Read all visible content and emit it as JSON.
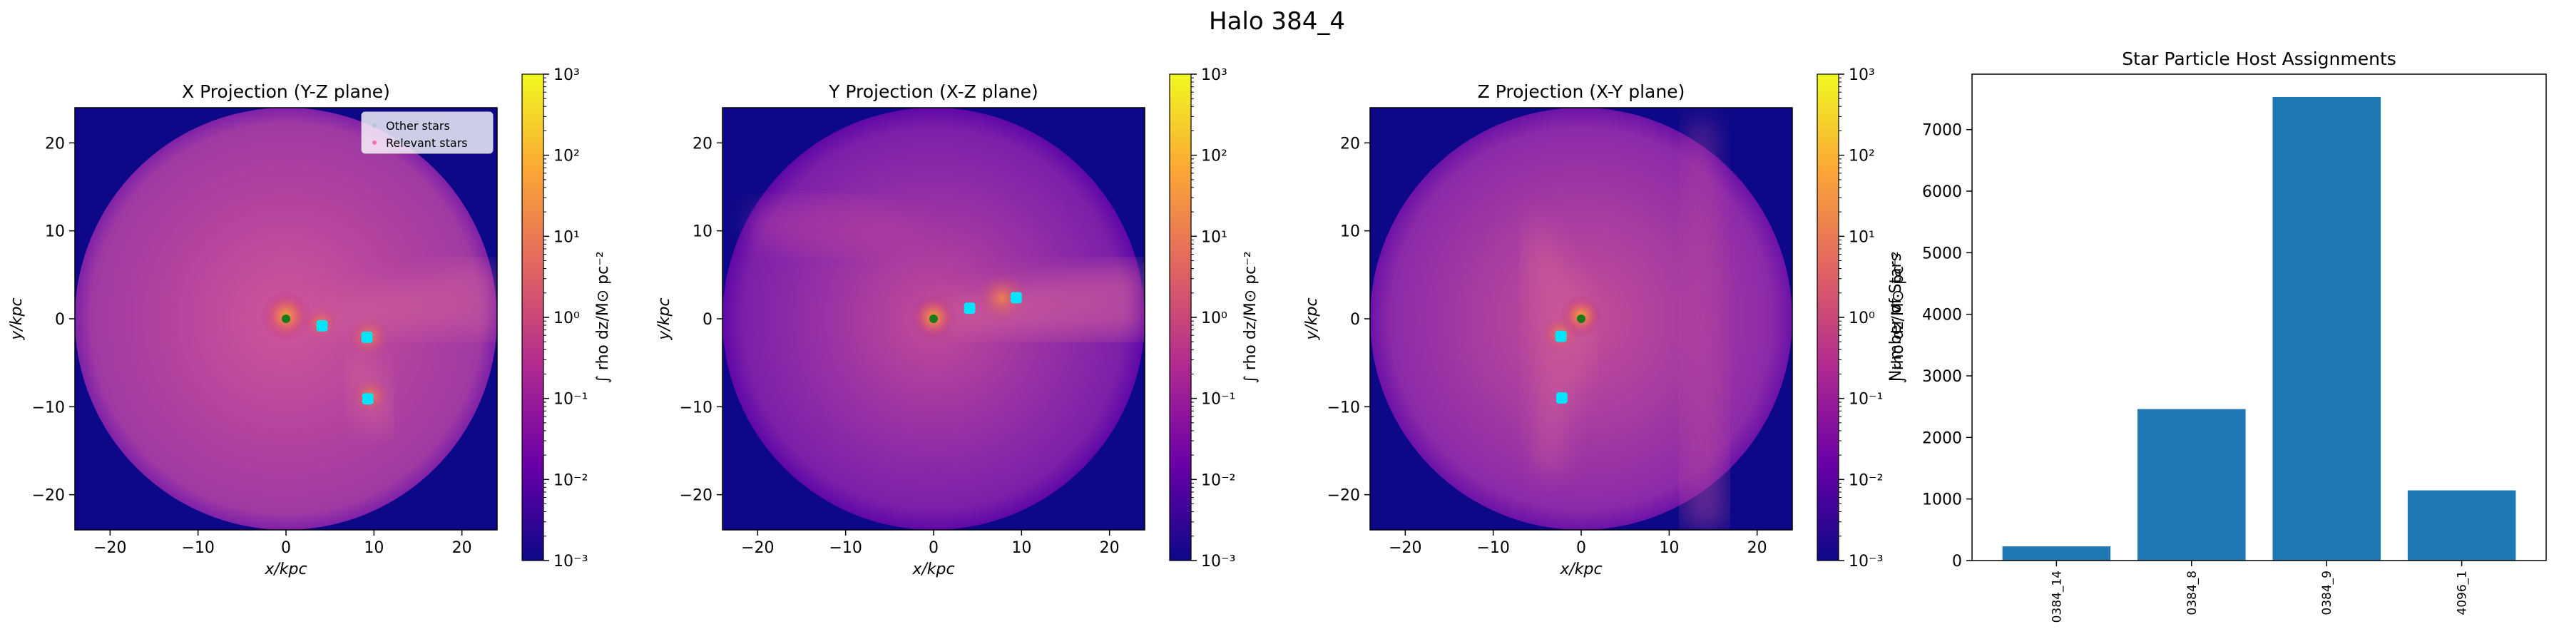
{
  "figure": {
    "suptitle": "Halo 384_4"
  },
  "colors": {
    "cmap": [
      "#0d0887",
      "#6a00a8",
      "#b12a90",
      "#e16462",
      "#fca636",
      "#f0f921"
    ],
    "other_stars": "#b0c4de",
    "relevant_stars": "#ff69b4",
    "star_clump": "#00e5ff",
    "center_marker": "#1a7a1a",
    "bar": "#1f77b4"
  },
  "chart_data": [
    {
      "type": "heatmap",
      "title": "X Projection (Y-Z plane)",
      "xlabel": "x/kpc",
      "ylabel": "y/kpc",
      "xlim": [
        -24,
        24
      ],
      "ylim": [
        -24,
        24
      ],
      "xticks": [
        -20,
        -10,
        0,
        10,
        20
      ],
      "yticks": [
        -20,
        -10,
        0,
        10,
        20
      ],
      "colorbar": {
        "label": "∫ rho dz/M⊙ pc⁻²",
        "scale": "log",
        "range": [
          0.001,
          1000
        ],
        "ticks": [
          "10³",
          "10²",
          "10¹",
          "10⁰",
          "10⁻¹",
          "10⁻²",
          "10⁻³"
        ]
      },
      "legend": {
        "position": "upper right",
        "entries": [
          "Other stars",
          "Relevant stars"
        ]
      },
      "center": [
        0,
        0
      ],
      "star_clumps": [
        [
          9.2,
          -2.1
        ],
        [
          9.3,
          -9.1
        ],
        [
          4.1,
          -0.8
        ]
      ]
    },
    {
      "type": "heatmap",
      "title": "Y Projection (X-Z plane)",
      "xlabel": "x/kpc",
      "ylabel": "y/kpc",
      "xlim": [
        -24,
        24
      ],
      "ylim": [
        -24,
        24
      ],
      "xticks": [
        -20,
        -10,
        0,
        10,
        20
      ],
      "yticks": [
        -20,
        -10,
        0,
        10,
        20
      ],
      "colorbar": {
        "label": "∫ rho dz/M⊙ pc⁻²",
        "scale": "log",
        "range": [
          0.001,
          1000
        ],
        "ticks": [
          "10³",
          "10²",
          "10¹",
          "10⁰",
          "10⁻¹",
          "10⁻²",
          "10⁻³"
        ]
      },
      "center": [
        0,
        0
      ],
      "star_clumps": [
        [
          9.4,
          2.4
        ],
        [
          4.1,
          1.2
        ]
      ]
    },
    {
      "type": "heatmap",
      "title": "Z Projection (X-Y plane)",
      "xlabel": "x/kpc",
      "ylabel": "y/kpc",
      "xlim": [
        -24,
        24
      ],
      "ylim": [
        -24,
        24
      ],
      "xticks": [
        -20,
        -10,
        0,
        10,
        20
      ],
      "yticks": [
        -20,
        -10,
        0,
        10,
        20
      ],
      "colorbar": {
        "label": "∫ rho dz/M⊙ pc⁻²",
        "scale": "log",
        "range": [
          0.001,
          1000
        ],
        "ticks": [
          "10³",
          "10²",
          "10¹",
          "10⁰",
          "10⁻¹",
          "10⁻²",
          "10⁻³"
        ]
      },
      "center": [
        0,
        0
      ],
      "star_clumps": [
        [
          -2.3,
          -2.0
        ],
        [
          -2.2,
          -9.0
        ]
      ]
    },
    {
      "type": "bar",
      "title": "Star Particle Host Assignments",
      "xlabel": "",
      "ylabel": "Number of Stars",
      "categories": [
        "0384_14",
        "0384_8",
        "0384_9",
        "4096_1"
      ],
      "values": [
        230,
        2460,
        7530,
        1140
      ],
      "ylim": [
        0,
        7900
      ],
      "yticks": [
        0,
        1000,
        2000,
        3000,
        4000,
        5000,
        6000,
        7000
      ]
    }
  ]
}
